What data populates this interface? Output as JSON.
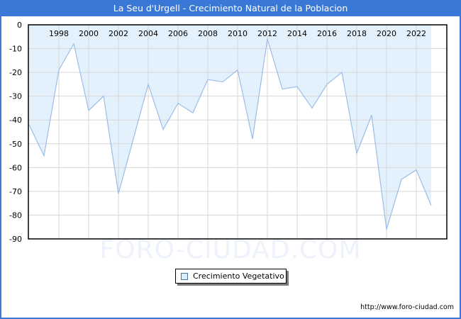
{
  "header": {
    "title": "La Seu d'Urgell - Crecimiento Natural de la Poblacion"
  },
  "legend": {
    "label": "Crecimiento Vegetativo",
    "swatch_color": "#dbeefc"
  },
  "watermark": "FORO-CIUDAD.COM",
  "footer": {
    "source_url": "http://www.foro-ciudad.com"
  },
  "colors": {
    "title_bar": "#3a78d8",
    "fill": "#e3f1fd",
    "line": "#9dbde8",
    "grid": "#d6d6d6"
  },
  "chart_data": {
    "type": "area",
    "title": "La Seu d'Urgell - Crecimiento Natural de la Poblacion",
    "xlabel": "",
    "ylabel": "",
    "ylim": [
      -90,
      0
    ],
    "yticks": [
      0,
      -10,
      -20,
      -30,
      -40,
      -50,
      -60,
      -70,
      -80,
      -90
    ],
    "xtick_labels": [
      "1998",
      "2000",
      "2002",
      "2004",
      "2006",
      "2008",
      "2010",
      "2012",
      "2014",
      "2016",
      "2018",
      "2020",
      "2022"
    ],
    "grid": true,
    "legend_position": "bottom-center",
    "x": [
      1996,
      1997,
      1998,
      1999,
      2000,
      2001,
      2002,
      2003,
      2004,
      2005,
      2006,
      2007,
      2008,
      2009,
      2010,
      2011,
      2012,
      2013,
      2014,
      2015,
      2016,
      2017,
      2018,
      2019,
      2020,
      2021,
      2022,
      2023
    ],
    "series": [
      {
        "name": "Crecimiento Vegetativo",
        "values": [
          -42,
          -55,
          -19,
          -8,
          -36,
          -30,
          -71,
          -48,
          -25,
          -44,
          -33,
          -37,
          -23,
          -24,
          -19,
          -48,
          -6,
          -27,
          -26,
          -35,
          -25,
          -20,
          -54,
          -38,
          -86,
          -65,
          -61,
          -76
        ]
      }
    ]
  }
}
